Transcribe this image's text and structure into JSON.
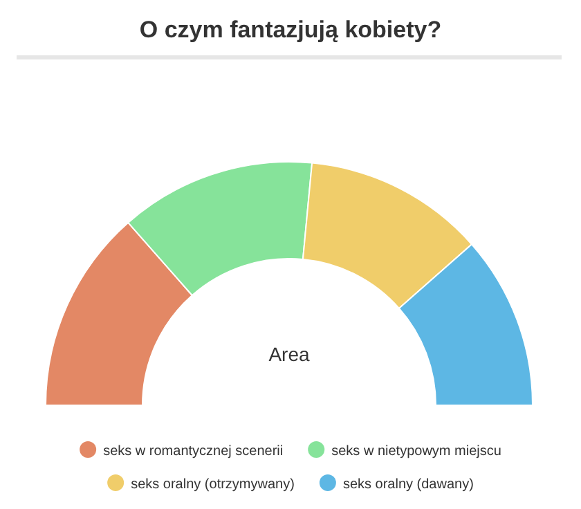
{
  "chart_data": {
    "type": "donut",
    "title": "O czym fantazjują kobiety?",
    "categories": [
      "seks w romantycznej scenerii",
      "seks w nietypowym miejscu",
      "seks oralny (otrzymywany)",
      "seks oralny (dawany)"
    ],
    "values": [
      27,
      26,
      24,
      23
    ],
    "colors": [
      "#e38865",
      "#86e39a",
      "#f0cd6a",
      "#5db7e4"
    ],
    "annotations": [
      "Area"
    ],
    "legend": "bottom"
  }
}
